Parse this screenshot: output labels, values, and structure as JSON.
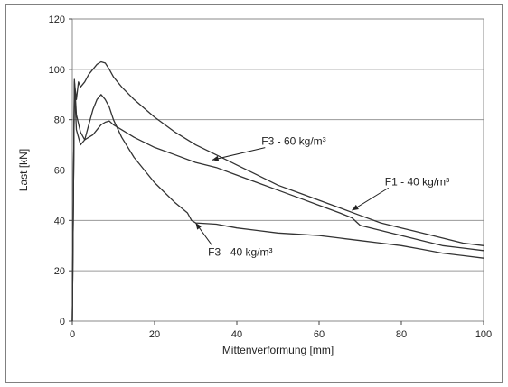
{
  "chart_data": {
    "type": "line",
    "title": "",
    "xlabel": "Mittenverformung [mm]",
    "ylabel": "Last [kN]",
    "xlim": [
      0,
      100
    ],
    "ylim": [
      0,
      120
    ],
    "x_ticks": [
      0,
      20,
      40,
      60,
      80,
      100
    ],
    "y_ticks": [
      0,
      20,
      40,
      60,
      80,
      100,
      120
    ],
    "grid": "horizontal",
    "legend": "none",
    "line_color": "#333333",
    "series": [
      {
        "x": [
          0,
          0.5,
          1,
          1.5,
          2,
          3,
          4,
          5,
          6,
          7,
          8,
          9,
          10,
          12,
          15,
          20,
          25,
          30,
          35,
          40,
          45,
          50,
          55,
          60,
          65,
          70,
          75,
          80,
          85,
          90,
          95,
          100
        ],
        "y": [
          0,
          95,
          88,
          95,
          93,
          95,
          98,
          100,
          102,
          103,
          102.5,
          100,
          97,
          93,
          88,
          81,
          75,
          70,
          66,
          62,
          58,
          54,
          51,
          48,
          45,
          42,
          39,
          37,
          35,
          33,
          31,
          30
        ]
      },
      {
        "x": [
          0,
          0.5,
          1,
          2,
          3,
          4,
          5,
          6,
          7,
          8,
          9,
          10,
          12,
          15,
          20,
          25,
          30,
          35,
          40,
          45,
          50,
          55,
          60,
          65,
          68,
          70,
          75,
          80,
          85,
          90,
          95,
          100
        ],
        "y": [
          0,
          96,
          82,
          75,
          72,
          73,
          74,
          76,
          78,
          79,
          79.5,
          78,
          76,
          73,
          69,
          66,
          63,
          61,
          58,
          55,
          52,
          49,
          46,
          43,
          41,
          38,
          36,
          34,
          32,
          30,
          29,
          28
        ]
      },
      {
        "x": [
          0,
          0.5,
          1,
          2,
          3,
          4,
          5,
          6,
          7,
          8,
          9,
          10,
          12,
          15,
          20,
          25,
          28,
          29,
          30,
          35,
          40,
          45,
          50,
          55,
          60,
          65,
          70,
          75,
          80,
          85,
          90,
          95,
          100
        ],
        "y": [
          0,
          94,
          76,
          70,
          72,
          78,
          84,
          88,
          90,
          88,
          85,
          80,
          73,
          65,
          55,
          47,
          43,
          40,
          39,
          38.5,
          37,
          36,
          35,
          34.5,
          34,
          33,
          32,
          31,
          30,
          28.5,
          27,
          26,
          25
        ]
      }
    ],
    "annotations": [
      {
        "text": "F3 - 60 kg/m³",
        "x": 46,
        "y": 70,
        "arrow_to_x": 34,
        "arrow_to_y": 64
      },
      {
        "text": "F1 - 40 kg/m³",
        "x": 76,
        "y": 54,
        "arrow_to_x": 68,
        "arrow_to_y": 44
      },
      {
        "text": "F3 - 40 kg/m³",
        "x": 33,
        "y": 26,
        "arrow_to_x": 30,
        "arrow_to_y": 39
      }
    ]
  }
}
